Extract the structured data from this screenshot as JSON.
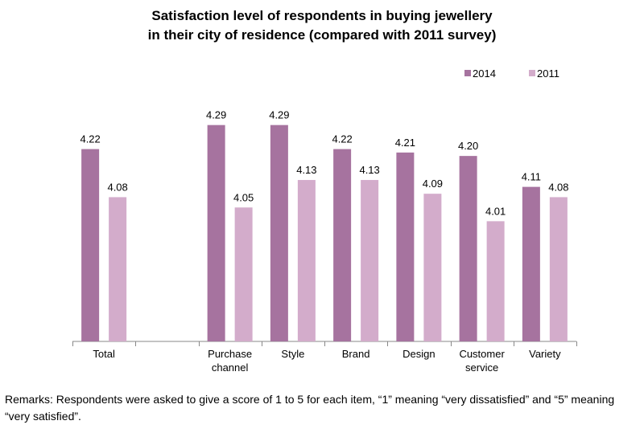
{
  "chart_data": {
    "type": "bar",
    "title_lines": [
      "Satisfaction level of respondents in buying jewellery",
      "in their city of residence (compared with 2011 survey)"
    ],
    "categories": [
      [
        "Total"
      ],
      [],
      [
        "Purchase",
        "channel"
      ],
      [
        "Style"
      ],
      [
        "Brand"
      ],
      [
        "Design"
      ],
      [
        "Customer",
        "service"
      ],
      [
        "Variety"
      ]
    ],
    "series": [
      {
        "name": "2014",
        "color": "#a6739f",
        "values": [
          4.22,
          null,
          4.29,
          4.29,
          4.22,
          4.21,
          4.2,
          4.11
        ],
        "labels": [
          "4.22",
          null,
          "4.29",
          "4.29",
          "4.22",
          "4.21",
          "4.20",
          "4.11"
        ]
      },
      {
        "name": "2011",
        "color": "#d3accb",
        "values": [
          4.08,
          null,
          4.05,
          4.13,
          4.13,
          4.09,
          4.01,
          4.08
        ],
        "labels": [
          "4.08",
          null,
          "4.05",
          "4.13",
          "4.13",
          "4.09",
          "4.01",
          "4.08"
        ]
      }
    ],
    "ylim": [
      3.66,
      4.35
    ],
    "xlabel": "",
    "ylabel": "",
    "legend_position": "top-right",
    "remarks": "Remarks: Respondents were asked to give a score of 1 to 5 for each item, “1” meaning “very dissatisfied” and “5” meaning “very satisfied”."
  }
}
